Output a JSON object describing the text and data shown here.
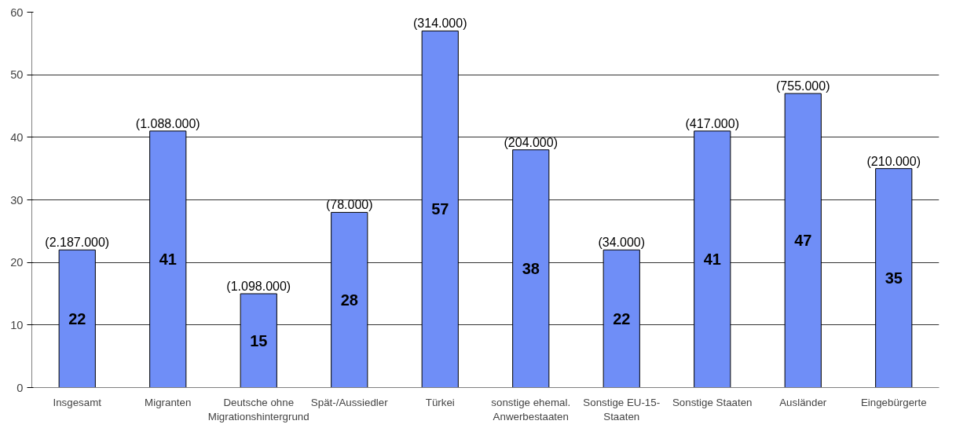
{
  "chart_data": {
    "type": "bar",
    "categories": [
      "Insgesamt",
      "Migranten",
      "Deutsche ohne\nMigrationshintergrund",
      "Spät-/Aussiedler",
      "Türkei",
      "sonstige ehemal.\nAnwerbestaaten",
      "Sonstige EU-15-\nStaaten",
      "Sonstige Staaten",
      "Ausländer",
      "Eingebürgerte"
    ],
    "values": [
      22,
      41,
      15,
      28,
      57,
      38,
      22,
      41,
      47,
      35
    ],
    "color": "#6f8ef7",
    "data_labels": true,
    "ylim": [
      0,
      60
    ],
    "yticks": [
      0,
      10,
      20,
      30,
      40,
      50,
      60
    ],
    "grid": "y",
    "annotations": [
      {
        "text": "(2.187.000)",
        "x": "Insgesamt",
        "y": 22
      },
      {
        "text": "(1.088.000)",
        "x": "Migranten",
        "y": 41
      },
      {
        "text": "(1.098.000)",
        "x": "Deutsche ohne\nMigrationshintergrund",
        "y": 15
      },
      {
        "text": "(78.000)",
        "x": "Spät-/Aussiedler",
        "y": 28
      },
      {
        "text": "(314.000)",
        "x": "Türkei",
        "y": 57
      },
      {
        "text": "(204.000)",
        "x": "sonstige ehemal.\nAnwerbestaaten",
        "y": 38
      },
      {
        "text": "(34.000)",
        "x": "Sonstige EU-15-\nStaaten",
        "y": 22
      },
      {
        "text": "(417.000)",
        "x": "Sonstige Staaten",
        "y": 41
      },
      {
        "text": "(755.000)",
        "x": "Ausländer",
        "y": 47
      },
      {
        "text": "(210.000)",
        "x": "Eingebürgerte",
        "y": 35
      }
    ]
  }
}
